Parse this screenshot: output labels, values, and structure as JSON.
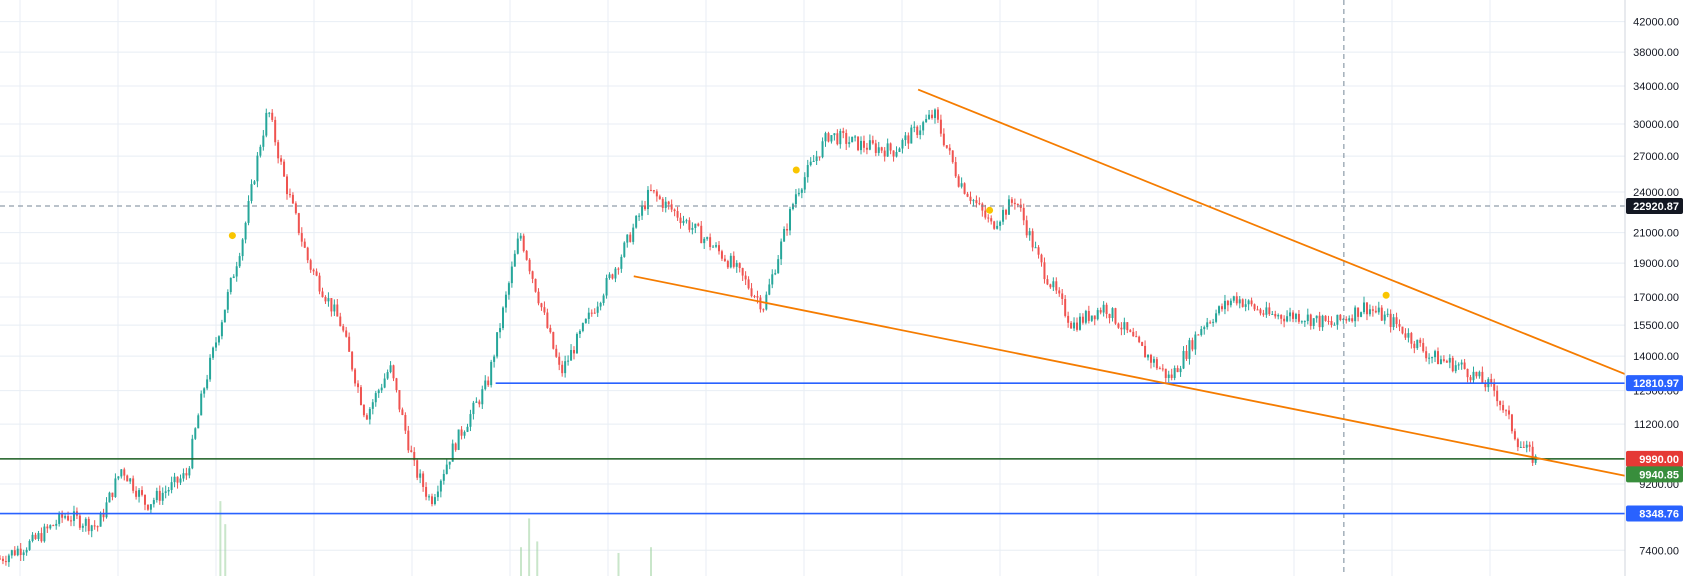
{
  "chart_data": {
    "type": "candlestick",
    "y_scale": "log",
    "ylim": [
      6800,
      44500
    ],
    "grid": true,
    "y_ticks": [
      {
        "value": 42000,
        "label": "42000.00"
      },
      {
        "value": 38000,
        "label": "38000.00"
      },
      {
        "value": 34000,
        "label": "34000.00"
      },
      {
        "value": 30000,
        "label": "30000.00"
      },
      {
        "value": 27000,
        "label": "27000.00"
      },
      {
        "value": 24000,
        "label": "24000.00"
      },
      {
        "value": 21000,
        "label": "21000.00"
      },
      {
        "value": 19000,
        "label": "19000.00"
      },
      {
        "value": 17000,
        "label": "17000.00"
      },
      {
        "value": 15500,
        "label": "15500.00"
      },
      {
        "value": 14000,
        "label": "14000.00"
      },
      {
        "value": 12500,
        "label": "12500.00"
      },
      {
        "value": 11200,
        "label": "11200.00"
      },
      {
        "value": 10000,
        "label": "10000.00"
      },
      {
        "value": 9200,
        "label": "9200.00"
      },
      {
        "value": 7400,
        "label": "7400.00"
      }
    ],
    "price_trend": [
      [
        0.0,
        7200
      ],
      [
        0.02,
        7600
      ],
      [
        0.04,
        8300
      ],
      [
        0.06,
        8000
      ],
      [
        0.075,
        9700
      ],
      [
        0.09,
        8600
      ],
      [
        0.105,
        9100
      ],
      [
        0.115,
        9500
      ],
      [
        0.125,
        12500
      ],
      [
        0.14,
        17000
      ],
      [
        0.15,
        21000
      ],
      [
        0.16,
        28000
      ],
      [
        0.165,
        31500
      ],
      [
        0.175,
        25000
      ],
      [
        0.19,
        19000
      ],
      [
        0.21,
        15500
      ],
      [
        0.225,
        11500
      ],
      [
        0.24,
        13500
      ],
      [
        0.255,
        9700
      ],
      [
        0.265,
        8700
      ],
      [
        0.28,
        10500
      ],
      [
        0.3,
        12800
      ],
      [
        0.32,
        21000
      ],
      [
        0.345,
        13200
      ],
      [
        0.36,
        15500
      ],
      [
        0.38,
        19000
      ],
      [
        0.4,
        24000
      ],
      [
        0.42,
        22000
      ],
      [
        0.45,
        19000
      ],
      [
        0.47,
        16500
      ],
      [
        0.49,
        24000
      ],
      [
        0.51,
        29000
      ],
      [
        0.53,
        28000
      ],
      [
        0.55,
        27500
      ],
      [
        0.575,
        31000
      ],
      [
        0.59,
        25000
      ],
      [
        0.61,
        21500
      ],
      [
        0.625,
        23500
      ],
      [
        0.64,
        19000
      ],
      [
        0.66,
        15500
      ],
      [
        0.68,
        16500
      ],
      [
        0.7,
        14500
      ],
      [
        0.72,
        13000
      ],
      [
        0.74,
        15500
      ],
      [
        0.76,
        17000
      ],
      [
        0.78,
        16000
      ],
      [
        0.8,
        16000
      ],
      [
        0.82,
        15500
      ],
      [
        0.84,
        16500
      ],
      [
        0.86,
        15500
      ],
      [
        0.88,
        14000
      ],
      [
        0.9,
        13500
      ],
      [
        0.92,
        12500
      ],
      [
        0.935,
        10500
      ],
      [
        0.945,
        9950
      ]
    ],
    "volume_bars": [
      {
        "x": 0.135,
        "height": 0.13
      },
      {
        "x": 0.138,
        "height": 0.09
      },
      {
        "x": 0.32,
        "height": 0.05
      },
      {
        "x": 0.325,
        "height": 0.1
      },
      {
        "x": 0.33,
        "height": 0.06
      },
      {
        "x": 0.38,
        "height": 0.04
      },
      {
        "x": 0.4,
        "height": 0.05
      }
    ],
    "markers": [
      {
        "x": 0.143,
        "value": 20800
      },
      {
        "x": 0.49,
        "value": 25800
      },
      {
        "x": 0.609,
        "value": 22600
      },
      {
        "x": 0.853,
        "value": 17100
      }
    ],
    "trendlines": [
      {
        "name": "upper-resistance",
        "color": "#f57c00",
        "points": [
          [
            0.565,
            33600
          ],
          [
            1.0,
            13200
          ]
        ]
      },
      {
        "name": "lower-support",
        "color": "#f57c00",
        "points": [
          [
            0.39,
            18200
          ],
          [
            1.0,
            9450
          ]
        ]
      }
    ],
    "hlines": [
      {
        "value": 12810.97,
        "label": "12810.97",
        "color": "#2962ff",
        "start": 0.305
      },
      {
        "value": 9990.0,
        "label": "9990.00",
        "color": "#1b5e20",
        "tag_color": "#e53935",
        "start": 0.0
      },
      {
        "value": 8348.76,
        "label": "8348.76",
        "color": "#2962ff",
        "start": 0.0
      }
    ],
    "crosshair": {
      "x": 0.827,
      "value": 22920.87,
      "label": "22920.87"
    },
    "tags": [
      {
        "value": 9940.85,
        "label": "9940.85",
        "color": "#388e3c"
      }
    ],
    "colors": {
      "up": "#26a69a",
      "down": "#ef5350",
      "grid": "#e8eef4",
      "crosshair": "#758696",
      "crosshair_tag": "#131722"
    }
  }
}
